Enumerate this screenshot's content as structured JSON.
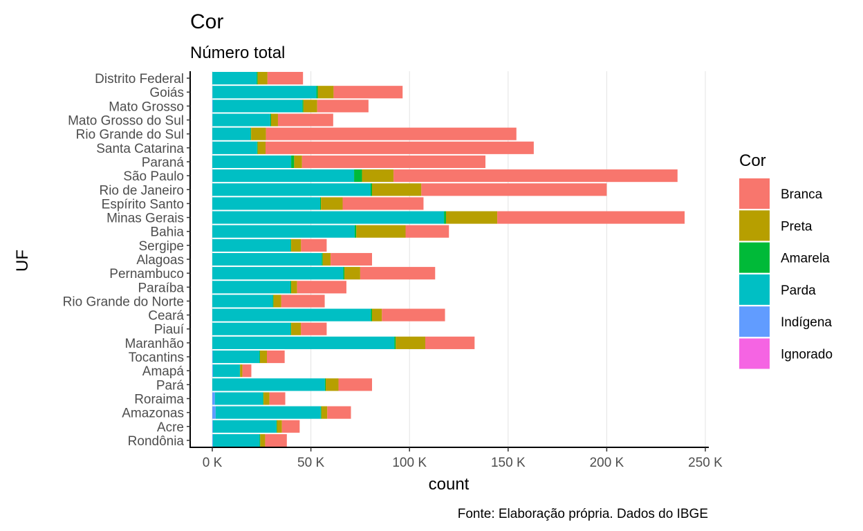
{
  "chart_data": {
    "type": "bar",
    "orientation": "horizontal",
    "stacked": true,
    "title": "Cor",
    "subtitle": "Número total",
    "xlabel": "count",
    "ylabel": "UF",
    "caption": "Fonte: Elaboração própria. Dados do IBGE",
    "xlim": [
      0,
      250000
    ],
    "x_ticks": [
      0,
      50000,
      100000,
      150000,
      200000,
      250000
    ],
    "x_tick_labels": [
      "0 K",
      "50 K",
      "100 K",
      "150 K",
      "200 K",
      "250 K"
    ],
    "grid": "vertical major lines",
    "legend": {
      "title": "Cor",
      "position": "right"
    },
    "categories": [
      "Distrito Federal",
      "Goiás",
      "Mato Grosso",
      "Mato Grosso do Sul",
      "Rio Grande do Sul",
      "Santa Catarina",
      "Paraná",
      "São Paulo",
      "Rio de Janeiro",
      "Espírito Santo",
      "Minas Gerais",
      "Bahia",
      "Sergipe",
      "Alagoas",
      "Pernambuco",
      "Paraíba",
      "Rio Grande do Norte",
      "Ceará",
      "Piauí",
      "Maranhão",
      "Tocantins",
      "Amapá",
      "Pará",
      "Roraima",
      "Amazonas",
      "Acre",
      "Rondônia"
    ],
    "series": [
      {
        "name": "Branca",
        "color": "#F8766D",
        "values": [
          18000,
          35000,
          26000,
          28000,
          127000,
          136000,
          93000,
          144000,
          94000,
          41000,
          95000,
          22000,
          13000,
          21000,
          38000,
          25000,
          22000,
          32000,
          13000,
          25000,
          9000,
          4500,
          17000,
          8000,
          12000,
          9000,
          11000
        ]
      },
      {
        "name": "Preta",
        "color": "#B79F00",
        "values": [
          5000,
          8000,
          7000,
          3500,
          7500,
          4000,
          4000,
          16000,
          25000,
          11000,
          26000,
          25000,
          5000,
          4000,
          8000,
          3000,
          4000,
          5000,
          5000,
          15000,
          3500,
          1200,
          6500,
          3000,
          3000,
          2500,
          2500
        ]
      },
      {
        "name": "Amarela",
        "color": "#00BA38",
        "values": [
          500,
          700,
          500,
          400,
          300,
          300,
          1500,
          4000,
          700,
          400,
          1000,
          800,
          300,
          500,
          600,
          400,
          300,
          600,
          300,
          700,
          300,
          100,
          400,
          300,
          300,
          300,
          300
        ]
      },
      {
        "name": "Parda",
        "color": "#00BFC4",
        "values": [
          22500,
          52700,
          45500,
          29300,
          19400,
          22600,
          40000,
          71800,
          80300,
          54700,
          117500,
          72200,
          39700,
          55500,
          66400,
          39600,
          30700,
          80400,
          39700,
          92300,
          23700,
          13700,
          57100,
          24400,
          53300,
          32200,
          23700
        ]
      },
      {
        "name": "Indígena",
        "color": "#619CFF",
        "values": [
          0,
          100,
          200,
          100,
          0,
          100,
          0,
          100,
          0,
          0,
          0,
          0,
          0,
          0,
          0,
          0,
          0,
          0,
          0,
          0,
          200,
          300,
          0,
          1300,
          1700,
          300,
          300
        ]
      },
      {
        "name": "Ignorado",
        "color": "#F564E3",
        "values": [
          0,
          0,
          0,
          0,
          0,
          0,
          0,
          0,
          0,
          0,
          0,
          0,
          0,
          0,
          0,
          0,
          0,
          0,
          0,
          0,
          0,
          0,
          0,
          0,
          0,
          0,
          0
        ]
      }
    ]
  }
}
